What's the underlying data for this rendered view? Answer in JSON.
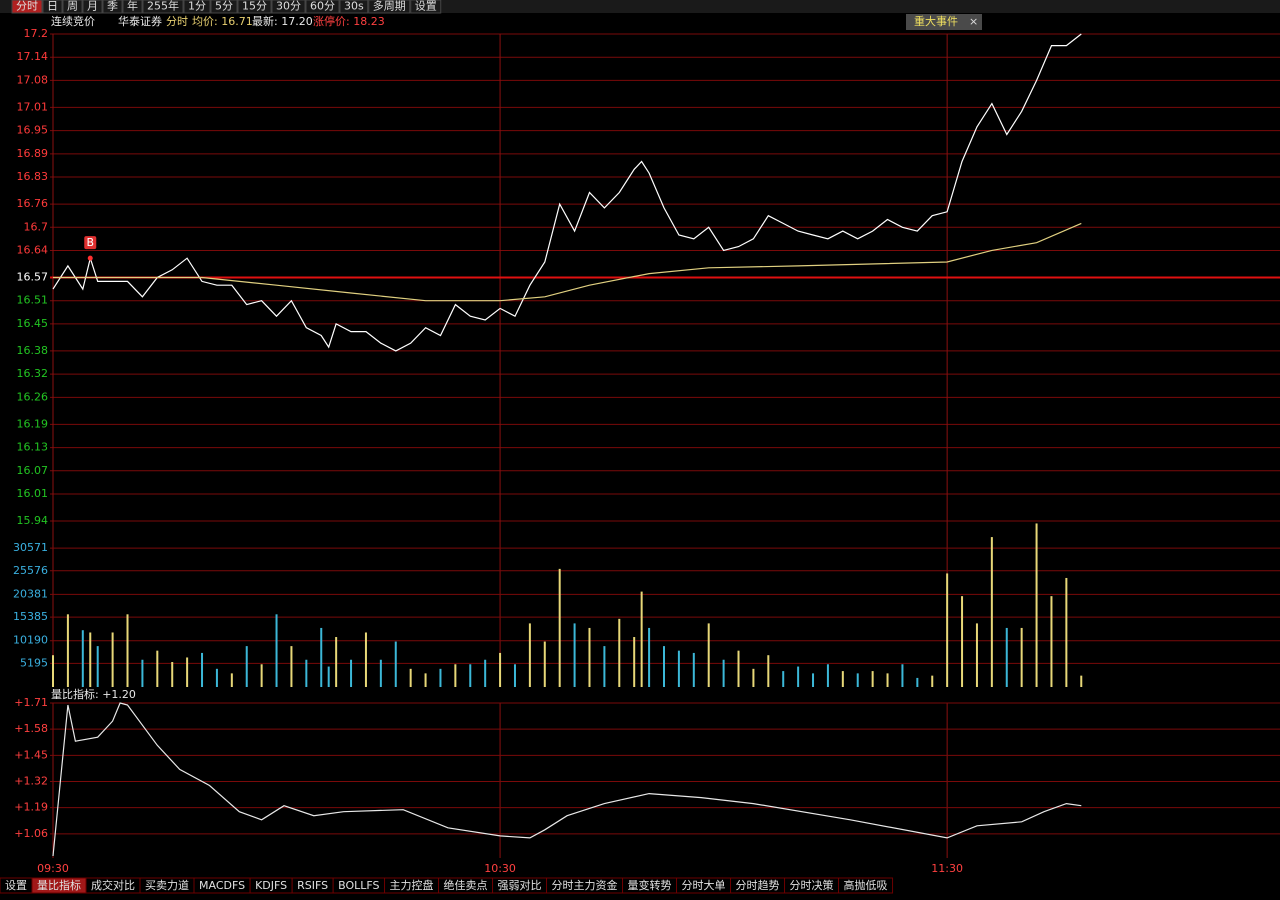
{
  "toolbar": [
    "分时",
    "日",
    "周",
    "月",
    "季",
    "年",
    "255年",
    "1分",
    "5分",
    "15分",
    "30分",
    "60分",
    "30s",
    "多周期",
    "设置"
  ],
  "info": {
    "status": "连续竞价",
    "name": "华泰证券",
    "mode": "分时",
    "avg": "均价: 16.71",
    "latest": "最新: 17.20",
    "limit": "涨停价: 18.23"
  },
  "event_button": "重大事件",
  "ratio_label": "量比指标: +1.20",
  "tabs": [
    "设置",
    "量比指标",
    "成交对比",
    "买卖力道",
    "MACDFS",
    "KDJFS",
    "RSIFS",
    "BOLLFS",
    "主力控盘",
    "绝佳卖点",
    "强弱对比",
    "分时主力资金",
    "量变转势",
    "分时大单",
    "分时趋势",
    "分时决策",
    "高抛低吸"
  ],
  "chart_data": [
    {
      "type": "line",
      "xlim": [
        0,
        164
      ],
      "xticks": [
        {
          "value": 0,
          "label": "09:30"
        },
        {
          "value": 60,
          "label": "10:30"
        },
        {
          "value": 120,
          "label": "11:30"
        }
      ],
      "ylim": [
        15.94,
        17.2
      ],
      "yticks": [
        17.2,
        17.14,
        17.08,
        17.01,
        16.95,
        16.89,
        16.83,
        16.76,
        16.7,
        16.64,
        16.57,
        16.51,
        16.45,
        16.38,
        16.32,
        16.26,
        16.19,
        16.13,
        16.07,
        16.01,
        15.94
      ],
      "reference": 16.57,
      "up_color": "#ff3a3a",
      "down_color": "#22c422",
      "series": [
        {
          "color": "#ffffff",
          "x": [
            0,
            2,
            4,
            5,
            6,
            8,
            10,
            12,
            14,
            16,
            18,
            20,
            22,
            24,
            26,
            28,
            30,
            32,
            34,
            36,
            37,
            38,
            40,
            42,
            44,
            46,
            48,
            50,
            52,
            54,
            56,
            58,
            60,
            62,
            64,
            66,
            68,
            70,
            72,
            74,
            76,
            78,
            79,
            80,
            82,
            84,
            86,
            88,
            90,
            92,
            94,
            96,
            98,
            100,
            102,
            104,
            106,
            108,
            110,
            112,
            114,
            116,
            118,
            120,
            122,
            124,
            126,
            128,
            130,
            132,
            134,
            136,
            138
          ],
          "values": [
            16.54,
            16.6,
            16.54,
            16.62,
            16.56,
            16.56,
            16.56,
            16.52,
            16.57,
            16.59,
            16.62,
            16.56,
            16.55,
            16.55,
            16.5,
            16.51,
            16.47,
            16.51,
            16.44,
            16.42,
            16.39,
            16.45,
            16.43,
            16.43,
            16.4,
            16.38,
            16.4,
            16.44,
            16.42,
            16.5,
            16.47,
            16.46,
            16.49,
            16.47,
            16.55,
            16.61,
            16.76,
            16.69,
            16.79,
            16.75,
            16.79,
            16.85,
            16.87,
            16.84,
            16.75,
            16.68,
            16.67,
            16.7,
            16.64,
            16.65,
            16.67,
            16.73,
            16.71,
            16.69,
            16.68,
            16.67,
            16.69,
            16.67,
            16.69,
            16.72,
            16.7,
            16.69,
            16.73,
            16.74,
            16.87,
            16.96,
            17.02,
            16.94,
            17.0,
            17.08,
            17.17,
            17.17,
            17.2
          ]
        },
        {
          "color": "#e0d080",
          "x": [
            0,
            20,
            30,
            40,
            50,
            60,
            66,
            72,
            80,
            88,
            100,
            120,
            126,
            132,
            138
          ],
          "values": [
            16.57,
            16.57,
            16.55,
            16.53,
            16.51,
            16.51,
            16.52,
            16.55,
            16.58,
            16.595,
            16.6,
            16.61,
            16.64,
            16.66,
            16.71
          ]
        }
      ],
      "annotations": [
        {
          "text": "B",
          "x": 5,
          "y": 16.62
        }
      ]
    },
    {
      "type": "bar",
      "xlim": [
        0,
        164
      ],
      "ylim": [
        0,
        36540
      ],
      "yticks": [
        5195,
        10190,
        15385,
        20381,
        25576,
        30571
      ],
      "up_color": "#e8d878",
      "down_color": "#3cb8d8",
      "x": [
        0,
        2,
        4,
        5,
        6,
        8,
        10,
        12,
        14,
        16,
        18,
        20,
        22,
        24,
        26,
        28,
        30,
        32,
        34,
        36,
        37,
        38,
        40,
        42,
        44,
        46,
        48,
        50,
        52,
        54,
        56,
        58,
        60,
        62,
        64,
        66,
        68,
        70,
        72,
        74,
        76,
        78,
        79,
        80,
        82,
        84,
        86,
        88,
        90,
        92,
        94,
        96,
        98,
        100,
        102,
        104,
        106,
        108,
        110,
        112,
        114,
        116,
        118,
        120,
        122,
        124,
        126,
        128,
        130,
        132,
        134,
        136,
        138
      ],
      "values": [
        7000,
        16000,
        12500,
        12000,
        9000,
        12000,
        16000,
        6000,
        8000,
        5500,
        6500,
        7500,
        4000,
        3000,
        9000,
        5000,
        16000,
        9000,
        6000,
        13000,
        4500,
        11000,
        6000,
        12000,
        6000,
        10000,
        4000,
        3000,
        4000,
        5000,
        5000,
        6000,
        7500,
        5000,
        14000,
        10000,
        26000,
        14000,
        13000,
        9000,
        15000,
        11000,
        21000,
        13000,
        9000,
        8000,
        7500,
        14000,
        6000,
        8000,
        4000,
        7000,
        3500,
        4500,
        3000,
        5000,
        3500,
        3000,
        3500,
        3000,
        5000,
        2000,
        2500,
        25000,
        20000,
        14000,
        33000,
        13000,
        13000,
        36000,
        20000,
        24000,
        2500
      ]
    },
    {
      "type": "line",
      "xlim": [
        0,
        164
      ],
      "ylim": [
        0.94,
        1.71
      ],
      "yticks": [
        {
          "value": 1.71,
          "label": "+1.71"
        },
        {
          "value": 1.58,
          "label": "+1.58"
        },
        {
          "value": 1.45,
          "label": "+1.45"
        },
        {
          "value": 1.32,
          "label": "+1.32"
        },
        {
          "value": 1.19,
          "label": "+1.19"
        },
        {
          "value": 1.06,
          "label": "+1.06"
        }
      ],
      "series": [
        {
          "color": "#e8e8e8",
          "x": [
            0,
            2,
            3,
            6,
            8,
            9,
            10,
            14,
            17,
            21,
            25,
            28,
            31,
            35,
            39,
            47,
            53,
            60,
            64,
            66,
            69,
            74,
            80,
            87,
            94,
            107,
            120,
            124,
            130,
            133,
            136,
            138
          ],
          "values": [
            0.95,
            1.7,
            1.52,
            1.54,
            1.62,
            1.71,
            1.7,
            1.5,
            1.38,
            1.3,
            1.17,
            1.13,
            1.2,
            1.15,
            1.17,
            1.18,
            1.09,
            1.05,
            1.04,
            1.08,
            1.15,
            1.21,
            1.26,
            1.24,
            1.21,
            1.13,
            1.04,
            1.1,
            1.12,
            1.17,
            1.21,
            1.2
          ]
        }
      ]
    }
  ]
}
